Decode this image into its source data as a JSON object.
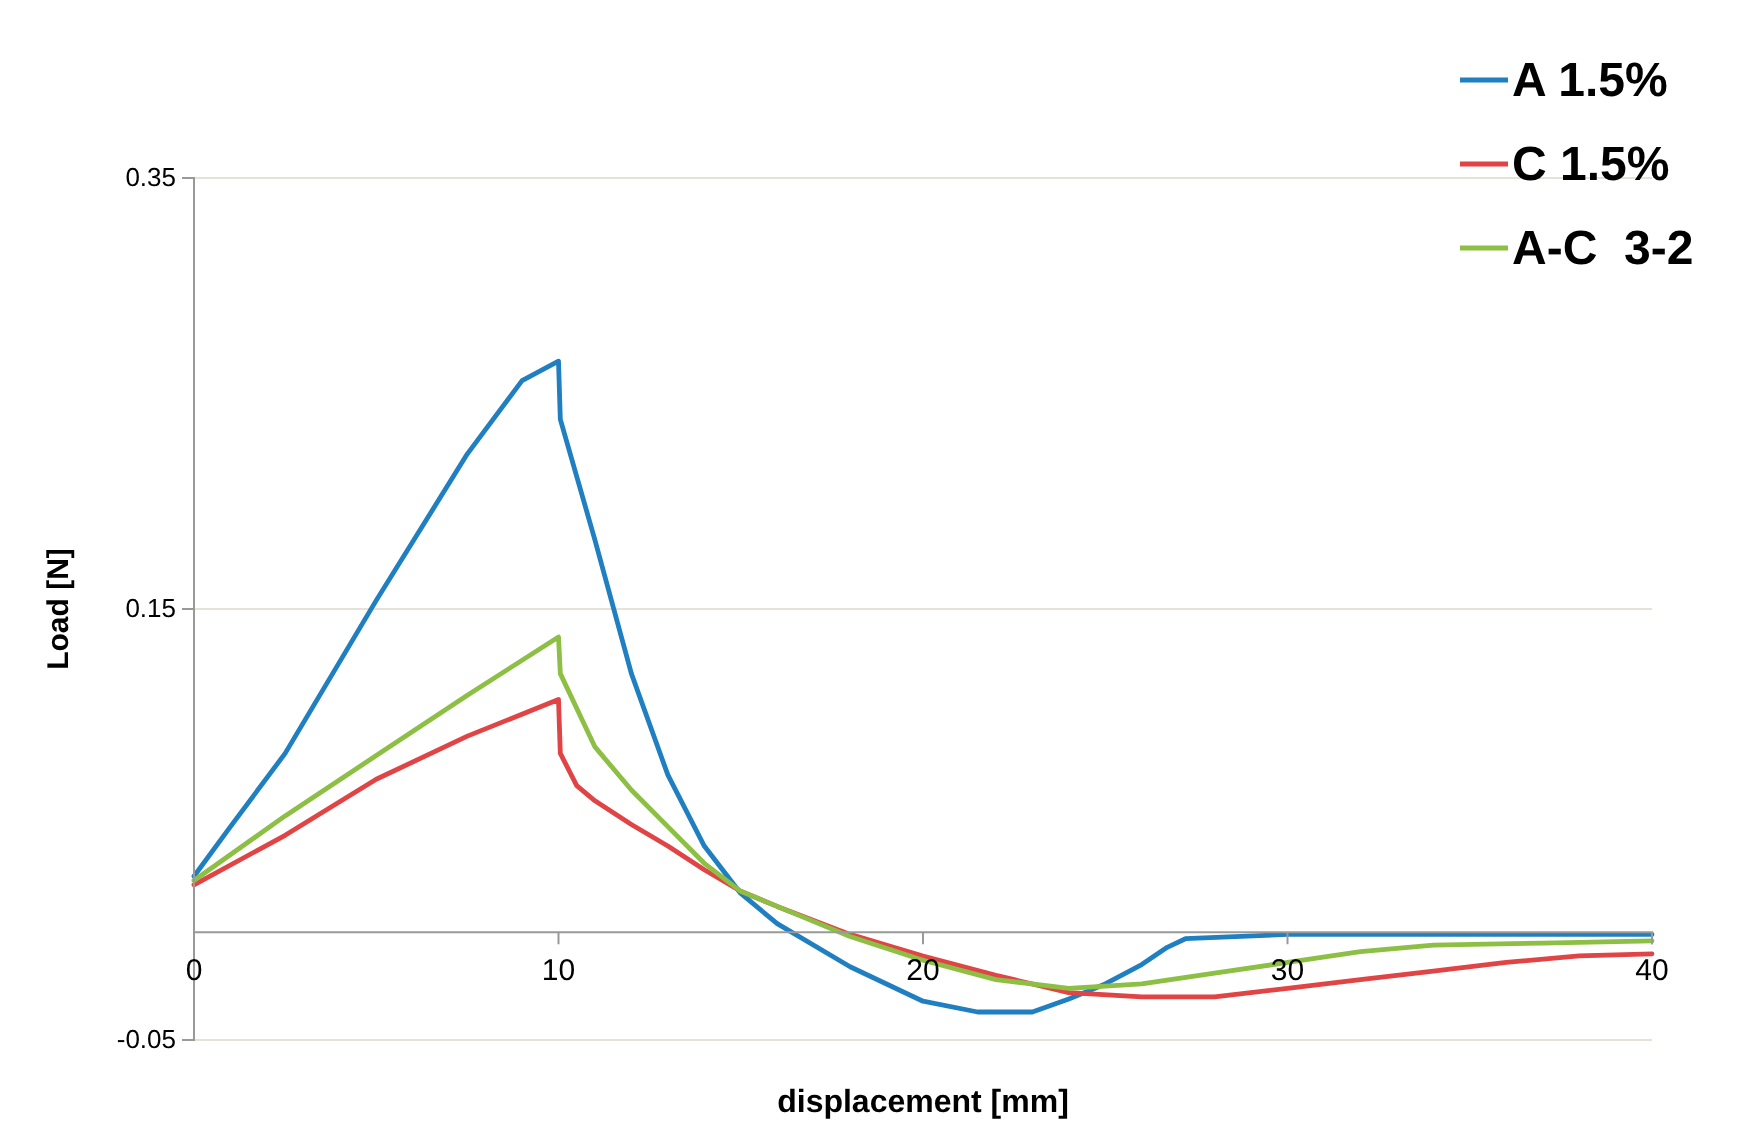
{
  "chart_data": {
    "type": "line",
    "xlabel": "displacement [mm]",
    "ylabel": "Load [N]",
    "xlim": [
      0,
      40
    ],
    "xticks": [
      0,
      10,
      20,
      30,
      40
    ],
    "ylim": [
      -0.05,
      0.35
    ],
    "yticks": [
      -0.05,
      0.15,
      0.35
    ],
    "grid": "y",
    "legend": "top right",
    "marker": "none",
    "line_style": "solid",
    "series": [
      {
        "name": "A 1.5%",
        "color": "#1f7fc0",
        "x": [
          0,
          1,
          2.5,
          5,
          7.5,
          9,
          10,
          10.05,
          11,
          12,
          13,
          14,
          15,
          16,
          18,
          20,
          21.5,
          23,
          24,
          25,
          26,
          26.7,
          27.2,
          30,
          35,
          40
        ],
        "values": [
          0.026,
          0.049,
          0.083,
          0.154,
          0.222,
          0.256,
          0.265,
          0.238,
          0.182,
          0.12,
          0.073,
          0.04,
          0.018,
          0.004,
          -0.016,
          -0.032,
          -0.037,
          -0.037,
          -0.031,
          -0.024,
          -0.015,
          -0.007,
          -0.003,
          -0.001,
          -0.001,
          -0.001
        ]
      },
      {
        "name": "C 1.5%",
        "color": "#e04444",
        "x": [
          0,
          2.5,
          5,
          7.5,
          10,
          10.05,
          10.5,
          11,
          12,
          13,
          14,
          15,
          16,
          18,
          20,
          22,
          24,
          26,
          28,
          30,
          32,
          34,
          36,
          38,
          40
        ],
        "values": [
          0.022,
          0.045,
          0.071,
          0.091,
          0.108,
          0.083,
          0.068,
          0.061,
          0.05,
          0.04,
          0.029,
          0.019,
          0.012,
          -0.001,
          -0.011,
          -0.02,
          -0.028,
          -0.03,
          -0.03,
          -0.026,
          -0.022,
          -0.018,
          -0.014,
          -0.011,
          -0.01
        ]
      },
      {
        "name": "A-C  3-2",
        "color": "#8cbf44",
        "x": [
          0,
          2.5,
          5,
          7.5,
          10,
          10.05,
          11,
          12,
          13,
          14,
          15,
          16,
          18,
          20,
          22,
          24,
          26,
          28,
          30,
          32,
          34,
          37,
          40
        ],
        "values": [
          0.024,
          0.054,
          0.082,
          0.11,
          0.137,
          0.12,
          0.086,
          0.066,
          0.049,
          0.032,
          0.019,
          0.012,
          -0.002,
          -0.013,
          -0.022,
          -0.026,
          -0.024,
          -0.019,
          -0.014,
          -0.009,
          -0.006,
          -0.005,
          -0.004
        ]
      }
    ]
  }
}
